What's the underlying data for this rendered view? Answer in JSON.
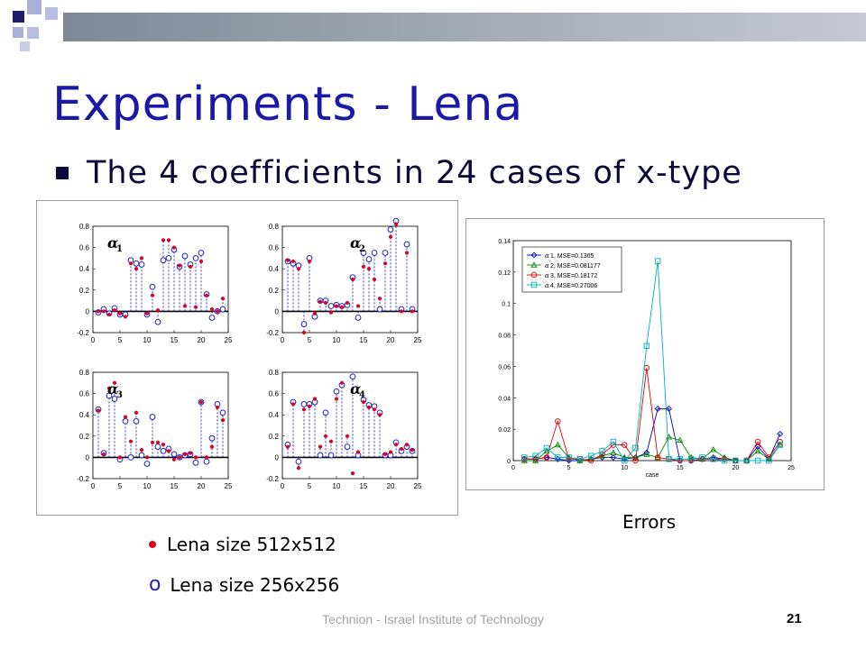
{
  "slide": {
    "title": "Experiments - Lena",
    "bullet": "The 4 coefficients in 24 cases of x-type",
    "errors_caption": "Errors",
    "legend_filled": "Lena size 512x512",
    "legend_open": "Lena size 256x256",
    "legend_open_marker": "o",
    "footer": "Technion - Israel Institute of Technology",
    "page_number": "21",
    "colors": {
      "title": "#1a1aa6",
      "deco_dark": "#1e1e6e",
      "deco_light": "#a8b0d8",
      "filled_marker": "#e00020",
      "open_marker": "#2020c0"
    }
  },
  "chart_data": [
    {
      "type": "scatter",
      "title": "α1",
      "xlim": [
        0,
        25
      ],
      "ylim": [
        -0.2,
        0.8
      ],
      "xticks": [
        "0",
        "5",
        "10",
        "15",
        "20",
        "25"
      ],
      "yticks": [
        "-0.2",
        "0",
        "0.2",
        "0.4",
        "0.6",
        "0.8"
      ],
      "x": [
        1,
        2,
        3,
        4,
        5,
        6,
        7,
        8,
        9,
        10,
        11,
        12,
        13,
        14,
        15,
        16,
        17,
        18,
        19,
        20,
        21,
        22,
        23,
        24
      ],
      "series": [
        {
          "name": "Lena size 256x256",
          "values": [
            -0.01,
            0.02,
            -0.02,
            0.03,
            -0.03,
            -0.03,
            0.48,
            0.45,
            0.44,
            -0.03,
            0.23,
            -0.1,
            0.48,
            0.5,
            0.58,
            0.42,
            0.52,
            0.44,
            0.5,
            0.55,
            0.16,
            -0.06,
            0.0,
            0.02
          ]
        },
        {
          "name": "Lena size 512x512",
          "values": [
            0.0,
            0.0,
            -0.03,
            0.01,
            -0.02,
            -0.05,
            0.45,
            0.4,
            0.5,
            -0.02,
            0.15,
            0.01,
            0.67,
            0.67,
            0.6,
            0.43,
            0.05,
            0.42,
            0.04,
            0.47,
            0.15,
            0.02,
            0.0,
            0.12
          ]
        }
      ]
    },
    {
      "type": "scatter",
      "title": "α2",
      "xlim": [
        0,
        25
      ],
      "ylim": [
        -0.2,
        0.8
      ],
      "xticks": [
        "0",
        "5",
        "10",
        "15",
        "20",
        "25"
      ],
      "yticks": [
        "-0.2",
        "0",
        "0.2",
        "0.4",
        "0.6",
        "0.8"
      ],
      "x": [
        1,
        2,
        3,
        4,
        5,
        6,
        7,
        8,
        9,
        10,
        11,
        12,
        13,
        14,
        15,
        16,
        17,
        18,
        19,
        20,
        21,
        22,
        23,
        24
      ],
      "series": [
        {
          "name": "Lena size 256x256",
          "values": [
            0.47,
            0.45,
            0.43,
            -0.12,
            0.5,
            -0.05,
            0.1,
            0.1,
            0.05,
            0.06,
            0.05,
            0.06,
            0.32,
            -0.06,
            0.55,
            0.49,
            0.55,
            0.02,
            0.55,
            0.77,
            0.85,
            0.02,
            0.63,
            0.02
          ]
        },
        {
          "name": "Lena size 512x512",
          "values": [
            0.48,
            0.47,
            0.4,
            -0.2,
            0.47,
            -0.02,
            0.09,
            0.08,
            -0.01,
            0.05,
            0.04,
            0.08,
            0.3,
            0.05,
            0.42,
            0.4,
            0.3,
            0.12,
            0.45,
            0.7,
            0.82,
            0.0,
            0.55,
            0.0
          ]
        }
      ]
    },
    {
      "type": "scatter",
      "title": "α3",
      "xlim": [
        0,
        25
      ],
      "ylim": [
        -0.2,
        0.8
      ],
      "xticks": [
        "0",
        "5",
        "10",
        "15",
        "20",
        "25"
      ],
      "yticks": [
        "-0.2",
        "0",
        "0.2",
        "0.4",
        "0.6",
        "0.8"
      ],
      "x": [
        1,
        2,
        3,
        4,
        5,
        6,
        7,
        8,
        9,
        10,
        11,
        12,
        13,
        14,
        15,
        16,
        17,
        18,
        19,
        20,
        21,
        22,
        23,
        24
      ],
      "series": [
        {
          "name": "Lena size 256x256",
          "values": [
            0.45,
            0.04,
            0.58,
            0.55,
            -0.02,
            0.34,
            0.0,
            0.34,
            0.02,
            -0.06,
            0.38,
            0.1,
            0.06,
            0.08,
            0.03,
            0.0,
            0.02,
            0.03,
            -0.05,
            0.52,
            -0.04,
            0.18,
            0.5,
            0.42
          ]
        },
        {
          "name": "Lena size 512x512",
          "values": [
            0.44,
            0.03,
            0.65,
            0.7,
            0.0,
            0.38,
            0.15,
            0.42,
            0.07,
            0.0,
            0.14,
            0.14,
            0.12,
            0.06,
            -0.02,
            0.0,
            0.03,
            0.04,
            0.0,
            0.52,
            0.0,
            0.1,
            0.47,
            0.35
          ]
        }
      ]
    },
    {
      "type": "scatter",
      "title": "α4",
      "xlim": [
        0,
        25
      ],
      "ylim": [
        -0.2,
        0.8
      ],
      "xticks": [
        "0",
        "5",
        "10",
        "15",
        "20",
        "25"
      ],
      "yticks": [
        "-0.2",
        "0",
        "0.2",
        "0.4",
        "0.6",
        "0.8"
      ],
      "x": [
        1,
        2,
        3,
        4,
        5,
        6,
        7,
        8,
        9,
        10,
        11,
        12,
        13,
        14,
        15,
        16,
        17,
        18,
        19,
        20,
        21,
        22,
        23,
        24
      ],
      "series": [
        {
          "name": "Lena size 256x256",
          "values": [
            0.12,
            0.52,
            -0.04,
            0.5,
            0.5,
            0.52,
            0.02,
            0.42,
            0.02,
            0.62,
            0.68,
            0.1,
            0.76,
            0.02,
            0.54,
            0.49,
            0.48,
            0.42,
            0.02,
            0.02,
            0.14,
            0.06,
            0.1,
            0.06
          ]
        },
        {
          "name": "Lena size 512x512",
          "values": [
            0.1,
            0.5,
            -0.1,
            0.45,
            0.48,
            0.55,
            0.1,
            0.2,
            0.15,
            0.55,
            0.7,
            0.2,
            -0.15,
            0.05,
            0.52,
            0.47,
            0.45,
            0.4,
            0.03,
            0.05,
            0.12,
            0.08,
            0.12,
            0.07
          ]
        }
      ]
    },
    {
      "type": "line",
      "xlabel": "case",
      "xlim": [
        0,
        25
      ],
      "ylim": [
        0,
        0.14
      ],
      "xticks": [
        "0",
        "5",
        "10",
        "15",
        "20",
        "25"
      ],
      "yticks": [
        "0",
        "0.02",
        "0.04",
        "0.06",
        "0.08",
        "0.1",
        "0.12",
        "0.14"
      ],
      "legend": "top-left",
      "x": [
        1,
        2,
        3,
        4,
        5,
        6,
        7,
        8,
        9,
        10,
        11,
        12,
        13,
        14,
        15,
        16,
        17,
        18,
        19,
        20,
        21,
        22,
        23,
        24
      ],
      "series": [
        {
          "name": "α1, MSE=0.1365",
          "color": "#0000cc",
          "marker": "diamond",
          "values": [
            0.001,
            0.001,
            0.002,
            0.001,
            0.0,
            0.0,
            0.001,
            0.002,
            0.002,
            0.001,
            0.002,
            0.005,
            0.033,
            0.033,
            0.0,
            0.0,
            0.001,
            0.002,
            0.001,
            0.0,
            0.0,
            0.009,
            0.001,
            0.017
          ]
        },
        {
          "name": "α2, MSE=0.081177",
          "color": "#008800",
          "marker": "triangle",
          "values": [
            0.0,
            0.0,
            0.006,
            0.01,
            0.002,
            0.0,
            0.001,
            0.003,
            0.005,
            0.002,
            0.002,
            0.004,
            0.002,
            0.015,
            0.013,
            0.002,
            0.001,
            0.007,
            0.002,
            0.0,
            0.0,
            0.006,
            0.001,
            0.01
          ]
        },
        {
          "name": "α3, MSE=0.18172",
          "color": "#dd0000",
          "marker": "circle",
          "values": [
            0.001,
            0.001,
            0.002,
            0.025,
            0.001,
            0.001,
            0.0,
            0.004,
            0.01,
            0.01,
            0.0,
            0.059,
            0.002,
            0.001,
            0.0,
            0.0,
            0.001,
            0.001,
            0.001,
            0.0,
            0.0,
            0.012,
            0.002,
            0.012
          ]
        },
        {
          "name": "α4, MSE=0.27006",
          "color": "#00b0c0",
          "marker": "square",
          "values": [
            0.002,
            0.003,
            0.008,
            0.002,
            0.002,
            0.001,
            0.003,
            0.006,
            0.012,
            0.0,
            0.008,
            0.073,
            0.127,
            0.001,
            0.001,
            0.001,
            0.002,
            0.001,
            0.0,
            0.0,
            0.0,
            0.0,
            0.0,
            0.01
          ]
        }
      ]
    }
  ]
}
